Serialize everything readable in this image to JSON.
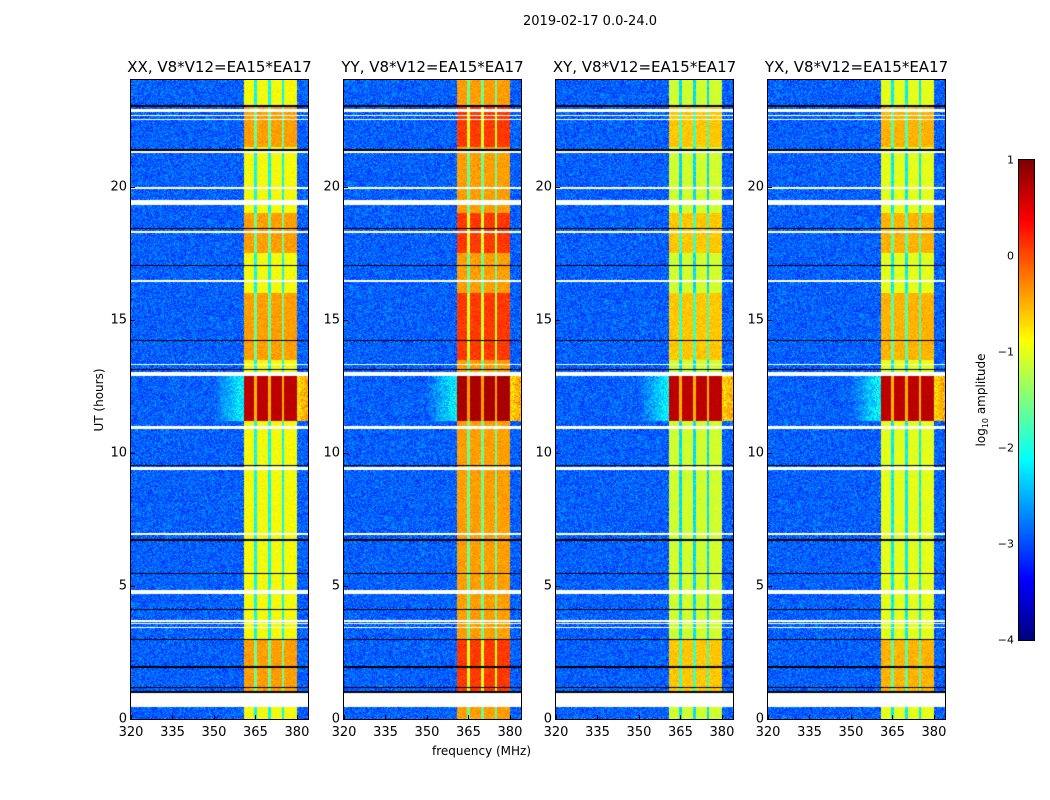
{
  "chart_data": {
    "type": "heatmap",
    "title": "2019-02-17 0.0-24.0",
    "xlabel": "frequency (MHz)",
    "ylabel": "UT (hours)",
    "xlim": [
      320,
      384
    ],
    "ylim": [
      0,
      24
    ],
    "xticks": [
      "320",
      "335",
      "350",
      "365",
      "380"
    ],
    "xtick_values": [
      320,
      335,
      350,
      365,
      380
    ],
    "yticks": [
      "0",
      "5",
      "10",
      "15",
      "20"
    ],
    "ytick_values": [
      0,
      5,
      10,
      15,
      20
    ],
    "panels": [
      {
        "title": "XX, V8*V12=EA15*EA17",
        "band_level": -0.9,
        "strong_level": 0.7
      },
      {
        "title": "YY, V8*V12=EA15*EA17",
        "band_level": -0.4,
        "strong_level": 0.8
      },
      {
        "title": "XY, V8*V12=EA15*EA17",
        "band_level": -1.1,
        "strong_level": 0.7
      },
      {
        "title": "YX, V8*V12=EA15*EA17",
        "band_level": -1.0,
        "strong_level": 0.7
      }
    ],
    "background_level": -2.9,
    "rfi_band_mhz": [
      361,
      380
    ],
    "rfi_channel_gaps_mhz": [
      365,
      370,
      375
    ],
    "strong_hours": [
      [
        11.2,
        13.0
      ]
    ],
    "elevated_hours": [
      [
        13.5,
        16.0
      ],
      [
        17.5,
        19.0
      ],
      [
        1.0,
        3.0
      ],
      [
        21.5,
        23.0
      ]
    ],
    "flagged_hours_white": [
      [
        0.45,
        0.98
      ],
      [
        3.4,
        3.45
      ],
      [
        3.55,
        3.6
      ],
      [
        3.65,
        3.7
      ],
      [
        4.7,
        4.85
      ],
      [
        6.9,
        7.0
      ],
      [
        9.35,
        9.45
      ],
      [
        10.9,
        11.0
      ],
      [
        12.9,
        13.05
      ],
      [
        13.3,
        13.35
      ],
      [
        16.4,
        16.5
      ],
      [
        18.25,
        18.32
      ],
      [
        19.3,
        19.5
      ],
      [
        19.9,
        20.0
      ],
      [
        21.25,
        21.32
      ],
      [
        22.5,
        22.55
      ],
      [
        22.65,
        22.7
      ],
      [
        22.8,
        22.9
      ]
    ],
    "flagged_hours_black": [
      [
        0.98,
        1.05
      ],
      [
        1.15,
        1.2
      ],
      [
        1.9,
        2.0
      ],
      [
        2.95,
        3.0
      ],
      [
        4.1,
        4.15
      ],
      [
        5.45,
        5.5
      ],
      [
        6.7,
        6.75
      ],
      [
        9.5,
        9.55
      ],
      [
        13.1,
        13.15
      ],
      [
        14.2,
        14.25
      ],
      [
        17.0,
        17.05
      ],
      [
        18.4,
        18.45
      ],
      [
        21.35,
        21.4
      ],
      [
        23.0,
        23.05
      ]
    ],
    "colorbar": {
      "label": "log10 amplitude",
      "label_main": "log",
      "label_sub": "10",
      "label_rest": " amplitude",
      "range": [
        -4,
        1
      ],
      "ticks": [
        "1",
        "0",
        "−1",
        "−2",
        "−3",
        "−4"
      ],
      "tick_values": [
        1,
        0,
        -1,
        -2,
        -3,
        -4
      ]
    }
  }
}
